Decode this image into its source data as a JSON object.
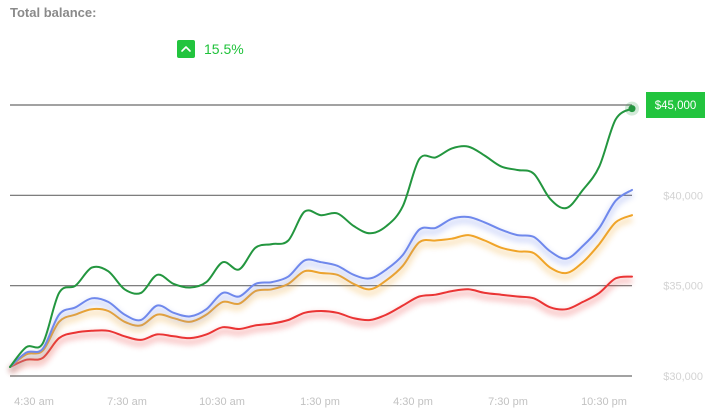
{
  "header": {
    "title": "Total balance:",
    "change_value": "15.5%",
    "change_icon": "chevron-up-icon",
    "change_color": "#22c43e"
  },
  "chart_data": {
    "type": "line",
    "x_ticks": [
      "4:30 am",
      "7:30 am",
      "10:30 am",
      "1:30 pm",
      "4:30 pm",
      "7:30 pm",
      "10:30 pm"
    ],
    "y_ticks": [
      "$30,000",
      "$35,000",
      "$40,000",
      "$45,000"
    ],
    "ylim": [
      30000,
      45000
    ],
    "current_label": "$45,000",
    "grid": true,
    "series": [
      {
        "color": "#23963f",
        "values": [
          30500,
          31600,
          31800,
          34600,
          35000,
          36000,
          35800,
          34800,
          34600,
          35600,
          35100,
          34900,
          35200,
          36300,
          35900,
          37100,
          37300,
          37500,
          39100,
          38900,
          39000,
          38300,
          37900,
          38300,
          39400,
          42000,
          42100,
          42600,
          42700,
          42200,
          41600,
          41400,
          41200,
          39800,
          39300,
          40300,
          41600,
          44200,
          44800
        ]
      },
      {
        "color": "#6f88ec",
        "values": [
          30500,
          31300,
          31500,
          33400,
          33800,
          34300,
          34100,
          33400,
          33100,
          33900,
          33500,
          33300,
          33700,
          34600,
          34400,
          35100,
          35200,
          35500,
          36400,
          36300,
          36100,
          35600,
          35400,
          35900,
          36700,
          38100,
          38200,
          38700,
          38800,
          38500,
          38100,
          37800,
          37700,
          36900,
          36500,
          37200,
          38200,
          39700,
          40300
        ]
      },
      {
        "color": "#f0a428",
        "values": [
          30500,
          31200,
          31400,
          33000,
          33400,
          33700,
          33600,
          33000,
          32800,
          33400,
          33200,
          33000,
          33400,
          34100,
          34000,
          34700,
          34800,
          35100,
          35800,
          35700,
          35600,
          35100,
          34800,
          35300,
          36100,
          37400,
          37500,
          37600,
          37800,
          37500,
          37100,
          36900,
          36800,
          36000,
          35700,
          36300,
          37300,
          38500,
          38900
        ]
      },
      {
        "color": "#ea3434",
        "values": [
          30500,
          30900,
          31000,
          32100,
          32400,
          32500,
          32500,
          32200,
          32000,
          32300,
          32200,
          32100,
          32300,
          32700,
          32600,
          32800,
          32900,
          33100,
          33500,
          33600,
          33500,
          33200,
          33100,
          33400,
          33900,
          34400,
          34500,
          34700,
          34800,
          34600,
          34500,
          34400,
          34300,
          33800,
          33700,
          34100,
          34600,
          35400,
          35500
        ]
      }
    ]
  }
}
